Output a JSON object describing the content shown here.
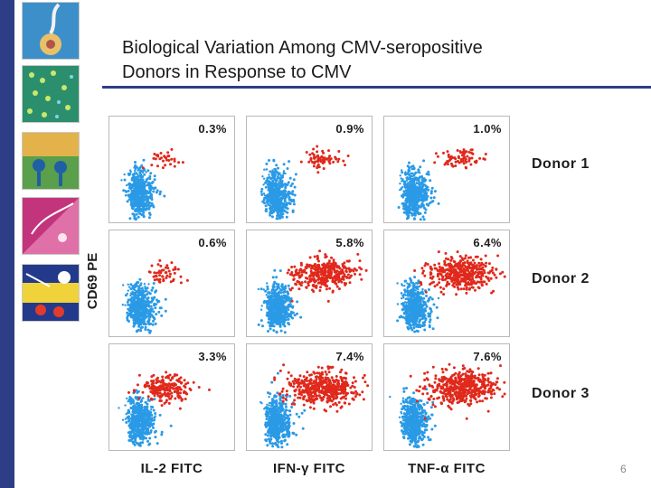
{
  "title_lines": [
    "Biological Variation Among CMV-seropositive",
    "Donors in Response to CMV"
  ],
  "y_axis_label": "CD69 PE",
  "x_axis_labels": [
    "IL-2 FITC",
    "IFN-γ FITC",
    "TNF-α FITC"
  ],
  "donors": [
    {
      "label": "Donor 1",
      "percentages": [
        "0.3%",
        "0.9%",
        "1.0%"
      ]
    },
    {
      "label": "Donor 2",
      "percentages": [
        "0.6%",
        "5.8%",
        "6.4%"
      ]
    },
    {
      "label": "Donor 3",
      "percentages": [
        "3.3%",
        "7.4%",
        "7.6%"
      ]
    }
  ],
  "page_number": "6",
  "colors": {
    "accent": "#2d3e86",
    "negative_population": "#2a9ae6",
    "positive_population": "#e0291c"
  }
}
